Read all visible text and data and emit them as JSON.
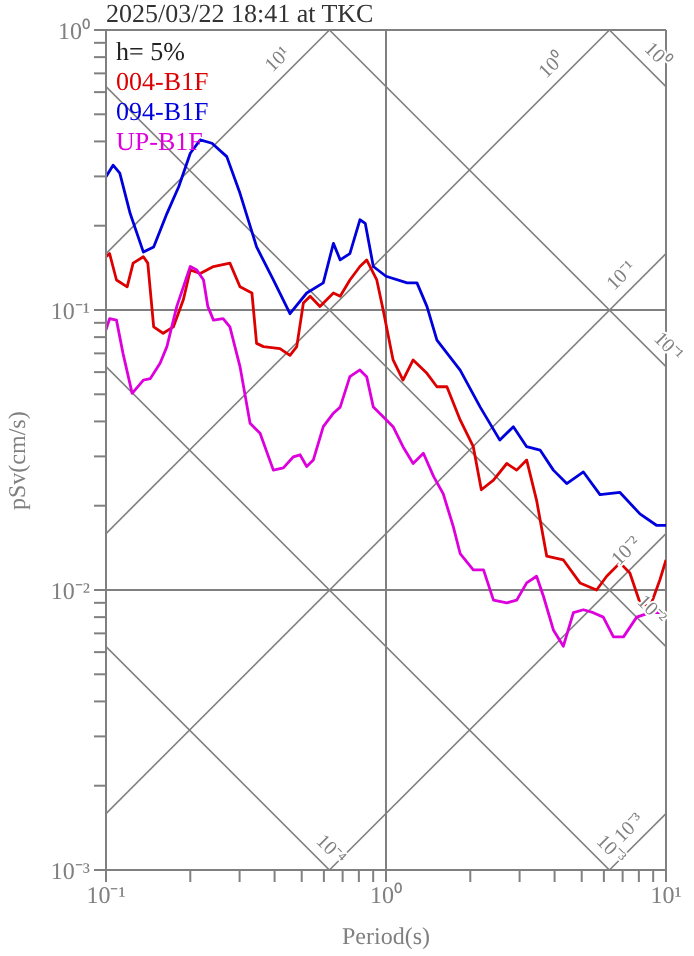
{
  "chart_data": {
    "type": "line",
    "title": "2025/03/22 18:41 at TKC",
    "xlabel": "Period(s)",
    "ylabel": "pSv(cm/s)",
    "log": "xy",
    "grid": true,
    "legend": "top left",
    "line_style": "solid",
    "marker": "none",
    "xlim": [
      0.1,
      10
    ],
    "ylim": [
      0.001,
      1
    ],
    "xticks": [
      {
        "value": 0.1,
        "label": "10⁻¹"
      },
      {
        "value": 0.2,
        "label": null
      },
      {
        "value": 0.3,
        "label": null
      },
      {
        "value": 0.4,
        "label": null
      },
      {
        "value": 0.5,
        "label": null
      },
      {
        "value": 0.6,
        "label": null
      },
      {
        "value": 0.7,
        "label": null
      },
      {
        "value": 0.8,
        "label": null
      },
      {
        "value": 0.9,
        "label": null
      },
      {
        "value": 1,
        "label": "10⁰"
      },
      {
        "value": 2,
        "label": null
      },
      {
        "value": 3,
        "label": null
      },
      {
        "value": 4,
        "label": null
      },
      {
        "value": 5,
        "label": null
      },
      {
        "value": 6,
        "label": null
      },
      {
        "value": 7,
        "label": null
      },
      {
        "value": 8,
        "label": null
      },
      {
        "value": 9,
        "label": null
      },
      {
        "value": 10,
        "label": "10¹"
      }
    ],
    "yticks": [
      {
        "value": 0.001,
        "label": "10⁻³"
      },
      {
        "value": 0.002,
        "label": null
      },
      {
        "value": 0.003,
        "label": null
      },
      {
        "value": 0.004,
        "label": null
      },
      {
        "value": 0.005,
        "label": null
      },
      {
        "value": 0.006,
        "label": null
      },
      {
        "value": 0.007,
        "label": null
      },
      {
        "value": 0.008,
        "label": null
      },
      {
        "value": 0.009,
        "label": null
      },
      {
        "value": 0.01,
        "label": "10⁻²"
      },
      {
        "value": 0.02,
        "label": null
      },
      {
        "value": 0.03,
        "label": null
      },
      {
        "value": 0.04,
        "label": null
      },
      {
        "value": 0.05,
        "label": null
      },
      {
        "value": 0.06,
        "label": null
      },
      {
        "value": 0.07,
        "label": null
      },
      {
        "value": 0.08,
        "label": null
      },
      {
        "value": 0.09,
        "label": null
      },
      {
        "value": 0.1,
        "label": "10⁻¹"
      },
      {
        "value": 0.2,
        "label": null
      },
      {
        "value": 0.3,
        "label": null
      },
      {
        "value": 0.4,
        "label": null
      },
      {
        "value": 0.5,
        "label": null
      },
      {
        "value": 0.6,
        "label": null
      },
      {
        "value": 0.7,
        "label": null
      },
      {
        "value": 0.8,
        "label": null
      },
      {
        "value": 0.9,
        "label": null
      },
      {
        "value": 1,
        "label": "10⁰"
      }
    ],
    "annotations": [
      "h= 5%",
      {
        "text": "10¹",
        "x": 0.45,
        "y": 0.716
      },
      {
        "text": "10⁰",
        "x": 4.3,
        "y": 0.684
      },
      {
        "text": "10⁰",
        "x": 8.5,
        "y": 0.739
      },
      {
        "text": "10⁻¹",
        "x": 7.6,
        "y": 0.121
      },
      {
        "text": "10⁻¹",
        "x": 9.3,
        "y": 0.0675
      },
      {
        "text": "10⁻²",
        "x": 7.9,
        "y": 0.01256
      },
      {
        "text": "10⁻²",
        "x": 8.1,
        "y": 0.00775
      },
      {
        "text": "10⁻⁴",
        "x": 0.58,
        "y": 0.00108
      },
      {
        "text": "10⁻³",
        "x": 5.8,
        "y": 0.00108
      },
      {
        "text": "10⁻³",
        "x": 8.1,
        "y": 0.00129
      }
    ],
    "series": [
      {
        "color": "#808080",
        "x": [
          0.1,
          0.628
        ],
        "values": [
          0.159,
          1
        ]
      },
      {
        "color": "#808080",
        "x": [
          0.1,
          6.28
        ],
        "values": [
          0.0159,
          1
        ]
      },
      {
        "color": "#808080",
        "x": [
          0.1,
          10
        ],
        "values": [
          0.00159,
          0.159
        ]
      },
      {
        "color": "#808080",
        "x": [
          0.628,
          10
        ],
        "values": [
          0.001,
          0.0159
        ]
      },
      {
        "color": "#808080",
        "x": [
          6.28,
          10
        ],
        "values": [
          0.001,
          0.00159
        ]
      },
      {
        "color": "#808080",
        "x": [
          6.28,
          10
        ],
        "values": [
          1,
          0.628
        ]
      },
      {
        "color": "#808080",
        "x": [
          0.628,
          10
        ],
        "values": [
          1,
          0.0628
        ]
      },
      {
        "color": "#808080",
        "x": [
          0.1,
          10
        ],
        "values": [
          0.628,
          0.00628
        ]
      },
      {
        "color": "#808080",
        "x": [
          0.1,
          6.28
        ],
        "values": [
          0.0628,
          0.001
        ]
      },
      {
        "color": "#808080",
        "x": [
          0.1,
          0.628
        ],
        "values": [
          0.00628,
          0.001
        ]
      },
      {
        "name": "004-B1F",
        "color": "#dd0000",
        "x": [
          0.1,
          0.103,
          0.109,
          0.119,
          0.125,
          0.136,
          0.141,
          0.148,
          0.16,
          0.174,
          0.189,
          0.2,
          0.217,
          0.242,
          0.277,
          0.301,
          0.332,
          0.345,
          0.365,
          0.418,
          0.454,
          0.48,
          0.507,
          0.536,
          0.581,
          0.649,
          0.686,
          0.743,
          0.807,
          0.853,
          0.927,
          0.977,
          1.06,
          1.15,
          1.25,
          1.4,
          1.52,
          1.65,
          1.84,
          2.05,
          2.19,
          2.42,
          2.7,
          2.93,
          3.18,
          3.45,
          3.75,
          4.3,
          4.93,
          5.65,
          6.14,
          6.85,
          7.43,
          8.07,
          8.77,
          9.52,
          10
        ],
        "values": [
          0.155,
          0.159,
          0.128,
          0.121,
          0.147,
          0.155,
          0.147,
          0.087,
          0.0826,
          0.087,
          0.109,
          0.139,
          0.135,
          0.143,
          0.147,
          0.121,
          0.115,
          0.076,
          0.074,
          0.0728,
          0.0689,
          0.074,
          0.106,
          0.112,
          0.103,
          0.115,
          0.112,
          0.128,
          0.143,
          0.151,
          0.128,
          0.1,
          0.0663,
          0.0562,
          0.0663,
          0.0594,
          0.0532,
          0.0532,
          0.0405,
          0.0325,
          0.0228,
          0.0247,
          0.0283,
          0.0268,
          0.0291,
          0.0209,
          0.0132,
          0.0128,
          0.0106,
          0.01,
          0.0112,
          0.0125,
          0.0115,
          0.009,
          0.0087,
          0.0109,
          0.0128
        ]
      },
      {
        "name": "094-B1F",
        "color": "#0000dd",
        "x": [
          0.1,
          0.106,
          0.112,
          0.122,
          0.136,
          0.148,
          0.165,
          0.182,
          0.2,
          0.217,
          0.239,
          0.27,
          0.301,
          0.345,
          0.396,
          0.454,
          0.521,
          0.597,
          0.649,
          0.686,
          0.743,
          0.807,
          0.843,
          0.901,
          1.0,
          1.19,
          1.29,
          1.4,
          1.52,
          1.84,
          2.17,
          2.55,
          2.85,
          3.18,
          3.55,
          3.96,
          4.42,
          5.07,
          5.81,
          6.85,
          8.07,
          9.27,
          10
        ],
        "values": [
          0.299,
          0.329,
          0.308,
          0.221,
          0.161,
          0.168,
          0.221,
          0.276,
          0.363,
          0.405,
          0.394,
          0.353,
          0.261,
          0.168,
          0.128,
          0.097,
          0.115,
          0.125,
          0.173,
          0.151,
          0.159,
          0.21,
          0.204,
          0.143,
          0.132,
          0.125,
          0.125,
          0.103,
          0.078,
          0.061,
          0.045,
          0.0343,
          0.0383,
          0.0325,
          0.0316,
          0.0268,
          0.024,
          0.0264,
          0.0219,
          0.0223,
          0.0187,
          0.017,
          0.017
        ]
      },
      {
        "name": "UP-B1F",
        "color": "#dd00dd",
        "x": [
          0.1,
          0.103,
          0.109,
          0.115,
          0.124,
          0.136,
          0.144,
          0.156,
          0.165,
          0.179,
          0.2,
          0.211,
          0.223,
          0.231,
          0.242,
          0.262,
          0.277,
          0.301,
          0.327,
          0.355,
          0.396,
          0.43,
          0.467,
          0.493,
          0.521,
          0.55,
          0.597,
          0.649,
          0.686,
          0.743,
          0.807,
          0.853,
          0.901,
          0.977,
          1.06,
          1.15,
          1.25,
          1.36,
          1.48,
          1.6,
          1.74,
          1.84,
          2.05,
          2.23,
          2.42,
          2.7,
          2.93,
          3.18,
          3.45,
          3.65,
          3.96,
          4.3,
          4.67,
          5.07,
          5.5,
          5.97,
          6.49,
          7.05,
          7.86,
          8.77,
          10
        ],
        "values": [
          0.0849,
          0.0931,
          0.092,
          0.07,
          0.0504,
          0.0562,
          0.0569,
          0.0645,
          0.074,
          0.103,
          0.143,
          0.139,
          0.128,
          0.103,
          0.092,
          0.0931,
          0.087,
          0.0628,
          0.0394,
          0.0363,
          0.0268,
          0.0273,
          0.0299,
          0.0304,
          0.0276,
          0.0291,
          0.0383,
          0.0428,
          0.045,
          0.0578,
          0.0611,
          0.0578,
          0.045,
          0.0416,
          0.0383,
          0.0325,
          0.0283,
          0.0308,
          0.0254,
          0.0221,
          0.0168,
          0.0135,
          0.0118,
          0.0118,
          0.0092,
          0.009,
          0.0092,
          0.0106,
          0.0112,
          0.0095,
          0.0072,
          0.0063,
          0.0083,
          0.0085,
          0.0083,
          0.008,
          0.0068,
          0.0068,
          0.008,
          0.0083,
          0.0083
        ]
      }
    ]
  }
}
